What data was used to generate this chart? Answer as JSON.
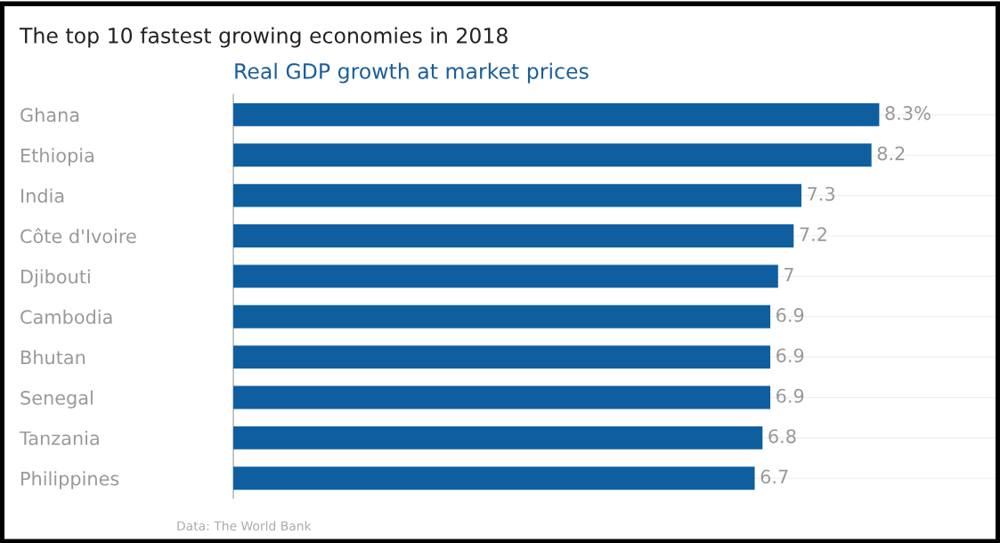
{
  "chart_data": {
    "type": "bar",
    "orientation": "horizontal",
    "title": "The top 10 fastest growing economies in 2018",
    "subtitle": "Real GDP growth at market prices",
    "categories": [
      "Ghana",
      "Ethiopia",
      "India",
      "Côte d'Ivoire",
      "Djibouti",
      "Cambodia",
      "Bhutan",
      "Senegal",
      "Tanzania",
      "Philippines"
    ],
    "values": [
      8.3,
      8.2,
      7.3,
      7.2,
      7,
      6.9,
      6.9,
      6.9,
      6.8,
      6.7
    ],
    "value_labels": [
      "8.3%",
      "8.2",
      "7.3",
      "7.2",
      "7",
      "6.9",
      "6.9",
      "6.9",
      "6.8",
      "6.7"
    ],
    "color": "#0f5fa0",
    "xlim": [
      0,
      9.8
    ],
    "grid": "y",
    "tick_labels": "y",
    "annotations": [
      "Data: The World Bank"
    ]
  }
}
